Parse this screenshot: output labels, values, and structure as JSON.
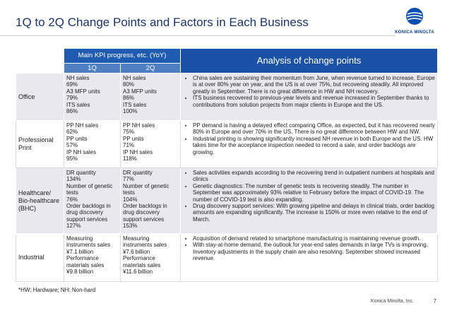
{
  "header": {
    "title": "1Q to 2Q Change Points and Factors in Each Business",
    "logo": "KONICA MINOLTA"
  },
  "table": {
    "kpi_header": "Main KPI progress, etc. (YoY)",
    "q1_header": "1Q",
    "q2_header": "2Q",
    "analysis_header": "Analysis of change points",
    "rows": [
      {
        "segment": "Office",
        "q1": [
          "NH sales",
          "69%",
          "A3 MFP units",
          "79%",
          "ITS sales",
          "86%"
        ],
        "q2": [
          "NH sales",
          "80%",
          "A3 MFP units",
          "86%",
          "ITS sales",
          "100%"
        ],
        "analysis": [
          "China sales are sustaining their momentum from June, when revenue turned to increase, Europe is at over 80% year on year, and the US is at over 75%, but recovering steadily. All improved greatly in September. There is no great difference in HW and NH recovery.",
          "ITS business recovered to previous-year levels and revenue increased in September thanks to contributions from solution projects from major clients in Europe and the US."
        ]
      },
      {
        "segment": "Professional Print",
        "q1": [
          "PP NH sales",
          "62%",
          "PP units",
          "57%",
          "IP NH sales",
          "95%"
        ],
        "q2": [
          "PP NH sales",
          "75%",
          "PP units",
          "71%",
          "IP NH sales",
          "118%"
        ],
        "analysis": [
          "PP demand is having a delayed effect comparing Office, as expected, but it has recovered nearly 80% in Europe and over 70% in the US. There is no great difference between HW and NW.",
          "Industrial printing is showing significantly increased NH revenue in both Europe and the US. HW takes time for the acceptance inspection needed to record a sale, and order backlogs are growing."
        ]
      },
      {
        "segment": "Healthcare/ Bio-healthcare (BHC)",
        "q1": [
          "DR quantity",
          "134%",
          "Number of genetic tests",
          "76%",
          "Order backlogs in drug discovery support services",
          "127%"
        ],
        "q2": [
          "DR quantity",
          "77%",
          "Number of genetic tests",
          "104%",
          "Order backlogs in drug discovery support services",
          "153%"
        ],
        "analysis": [
          "Sales activities expands according to the recovering trend in outpatient numbers at hospitals and clinics",
          "Genetic diagnostics: The number of genetic tests is recovering steadily. The number in September was approximately 93% relative to February before the impact of COVID-19. The number of COVID-19 test is also expanding.",
          "Drug discovery support services: With growing pipeline and delays in clinical trials, order backlog amounts are expanding significantly. The increase is 150% or more even relative to the end of March."
        ]
      },
      {
        "segment": "Industrial",
        "q1": [
          "Measuring instruments sales",
          "¥7.1 billion",
          "Performance materials sales",
          "¥9.8 billion"
        ],
        "q2": [
          "Measuring instruments sales",
          "¥7.6 billion",
          "Performance materials sales",
          "¥11.6 billion"
        ],
        "analysis": [
          "Acquisition of demand related to smartphone manufacturing is maintaining revenue growth.",
          "With stay-at-home demand, the outlook for year-end sales demands in large TVs is improving. Inventory adjustments in the supply chain are also resolving. September showed increased revenue."
        ]
      }
    ]
  },
  "footnote": "*HW: Hardware; NH: Non-hard",
  "footer": {
    "company": "Konica Minolta, Inc.",
    "page": "7"
  }
}
